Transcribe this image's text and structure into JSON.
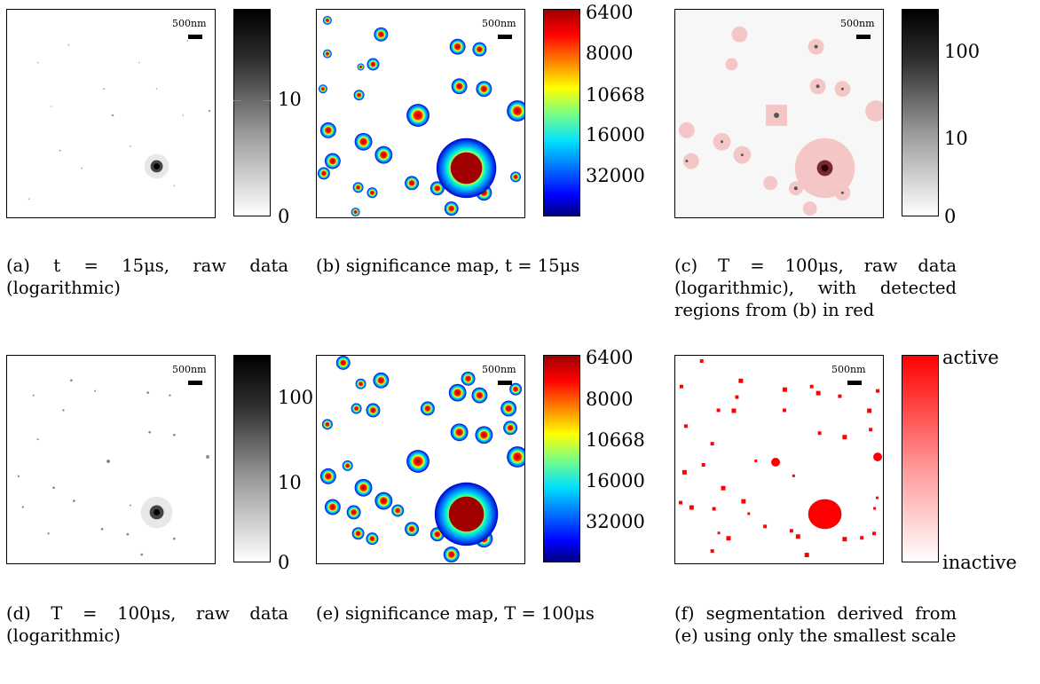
{
  "panels": [
    {
      "id": "a",
      "scale_label": "500nm",
      "colorbar": {
        "type": "grayscale",
        "ticks": [
          "10",
          "0"
        ]
      },
      "caption": "(a) t = 15μs, raw data (logarithmic)"
    },
    {
      "id": "b",
      "scale_label": "500nm",
      "colorbar": {
        "type": "jet",
        "ticks": [
          "6400",
          "8000",
          "10668",
          "16000",
          "32000"
        ]
      },
      "caption": "(b) significance map, t = 15μs"
    },
    {
      "id": "c",
      "scale_label": "500nm",
      "colorbar": {
        "type": "grayscale",
        "ticks": [
          "100",
          "10",
          "0"
        ]
      },
      "caption": "(c) T = 100μs, raw data (logarithmic), with detected regions from (b) in red"
    },
    {
      "id": "d",
      "scale_label": "500nm",
      "colorbar": {
        "type": "grayscale",
        "ticks": [
          "100",
          "10",
          "0"
        ]
      },
      "caption": "(d) T = 100μs, raw data (logarithmic)"
    },
    {
      "id": "e",
      "scale_label": "500nm",
      "colorbar": {
        "type": "jet",
        "ticks": [
          "6400",
          "8000",
          "10668",
          "16000",
          "32000"
        ]
      },
      "caption": "(e) significance map, T = 100μs"
    },
    {
      "id": "f",
      "scale_label": "500nm",
      "colorbar": {
        "type": "red",
        "ticks": [
          "active",
          "inactive"
        ]
      },
      "caption": "(f) segmentation derived from (e) using only the smallest scale"
    }
  ],
  "colors": {
    "segment_red": "#ff0000",
    "overlay_pink": "#f4b6b6",
    "frame": "#000000"
  }
}
